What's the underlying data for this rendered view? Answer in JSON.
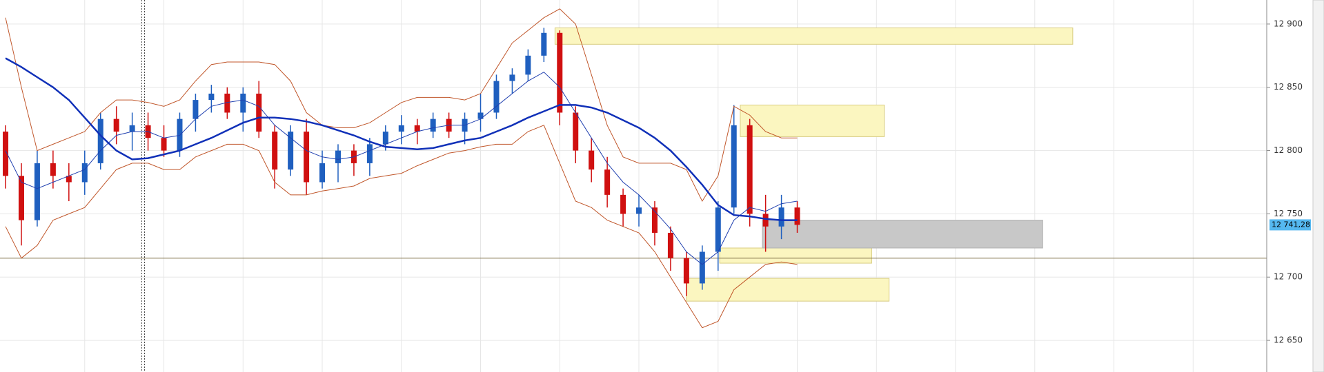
{
  "chart_data": {
    "type": "candlestick",
    "xlim": [
      -0.35,
      79.65
    ],
    "xticks": [
      5,
      10,
      15,
      20,
      25,
      30,
      35,
      40,
      45,
      50,
      55,
      60,
      65,
      70,
      75
    ],
    "ylim": [
      12625,
      12919
    ],
    "yticks": [
      {
        "value": 12650,
        "label": "12 650"
      },
      {
        "value": 12700,
        "label": "12 700"
      },
      {
        "value": 12750,
        "label": "12 750"
      },
      {
        "value": 12800,
        "label": "12 800"
      },
      {
        "value": 12850,
        "label": "12 850"
      },
      {
        "value": 12900,
        "label": "12 900"
      }
    ],
    "grid": true,
    "up_color": "#1f5fbf",
    "down_color": "#d01010",
    "open": [
      12815,
      12780,
      12745,
      12790,
      12780,
      12775,
      12790,
      12825,
      12815,
      12820,
      12810,
      12800,
      12825,
      12840,
      12845,
      12830,
      12845,
      12815,
      12785,
      12815,
      12775,
      12790,
      12800,
      12790,
      12805,
      12815,
      12820,
      12815,
      12825,
      12815,
      12825,
      12830,
      12855,
      12860,
      12875,
      12893,
      12830,
      12800,
      12785,
      12765,
      12750,
      12755,
      12735,
      12715,
      12695,
      12720,
      12755,
      12820,
      12750,
      12740,
      12755
    ],
    "high": [
      12820,
      12790,
      12800,
      12800,
      12790,
      12800,
      12830,
      12835,
      12830,
      12830,
      12820,
      12830,
      12845,
      12852,
      12850,
      12850,
      12855,
      12820,
      12820,
      12825,
      12800,
      12805,
      12805,
      12810,
      12820,
      12828,
      12825,
      12830,
      12830,
      12830,
      12845,
      12860,
      12865,
      12880,
      12897,
      12895,
      12835,
      12810,
      12795,
      12770,
      12765,
      12760,
      12740,
      12720,
      12725,
      12760,
      12836,
      12825,
      12765,
      12765,
      12760
    ],
    "low": [
      12770,
      12725,
      12740,
      12770,
      12760,
      12765,
      12785,
      12805,
      12800,
      12800,
      12795,
      12795,
      12815,
      12830,
      12825,
      12815,
      12810,
      12770,
      12780,
      12765,
      12770,
      12775,
      12780,
      12780,
      12800,
      12805,
      12805,
      12810,
      12810,
      12805,
      12815,
      12825,
      12845,
      12855,
      12870,
      12820,
      12790,
      12775,
      12755,
      12740,
      12740,
      12725,
      12705,
      12685,
      12690,
      12705,
      12750,
      12740,
      12720,
      12730,
      12735
    ],
    "close": [
      12780,
      12745,
      12790,
      12780,
      12775,
      12790,
      12825,
      12815,
      12820,
      12810,
      12800,
      12825,
      12840,
      12845,
      12830,
      12845,
      12815,
      12785,
      12815,
      12775,
      12790,
      12800,
      12790,
      12805,
      12815,
      12820,
      12815,
      12825,
      12815,
      12825,
      12830,
      12855,
      12860,
      12875,
      12893,
      12830,
      12800,
      12785,
      12765,
      12750,
      12755,
      12735,
      12715,
      12695,
      12720,
      12755,
      12820,
      12750,
      12740,
      12755,
      12741.28
    ],
    "overlays": [
      {
        "color": "#c0562a",
        "width": 1,
        "values": [
          12905,
          12850,
          12800,
          12805,
          12810,
          12815,
          12830,
          12840,
          12840,
          12838,
          12835,
          12840,
          12855,
          12868,
          12870,
          12870,
          12870,
          12868,
          12855,
          12830,
          12820,
          12818,
          12818,
          12822,
          12830,
          12838,
          12842,
          12842,
          12842,
          12840,
          12845,
          12865,
          12885,
          12895,
          12905,
          12912,
          12900,
          12860,
          12820,
          12795,
          12790,
          12790,
          12790,
          12785,
          12760,
          12780,
          12835,
          12828,
          12815,
          12810,
          12810
        ]
      },
      {
        "color": "#c0562a",
        "width": 1,
        "values": [
          12740,
          12715,
          12725,
          12745,
          12750,
          12755,
          12770,
          12785,
          12790,
          12790,
          12785,
          12785,
          12795,
          12800,
          12805,
          12805,
          12800,
          12775,
          12765,
          12765,
          12768,
          12770,
          12772,
          12778,
          12780,
          12782,
          12788,
          12793,
          12798,
          12800,
          12803,
          12805,
          12805,
          12815,
          12820,
          12790,
          12760,
          12755,
          12745,
          12740,
          12735,
          12720,
          12700,
          12680,
          12660,
          12665,
          12690,
          12700,
          12710,
          12712,
          12710
        ]
      },
      {
        "color": "#2040b0",
        "width": 1,
        "values": [
          12800,
          12775,
          12770,
          12775,
          12780,
          12785,
          12800,
          12812,
          12815,
          12815,
          12810,
          12812,
          12825,
          12835,
          12838,
          12840,
          12835,
          12820,
          12810,
          12800,
          12795,
          12793,
          12795,
          12800,
          12805,
          12810,
          12815,
          12818,
          12820,
          12820,
          12825,
          12835,
          12845,
          12855,
          12862,
          12850,
          12830,
          12810,
          12790,
          12775,
          12765,
          12752,
          12738,
          12720,
          12710,
          12720,
          12745,
          12755,
          12752,
          12758,
          12760
        ]
      },
      {
        "color": "#1030b8",
        "width": 2.5,
        "values": [
          12873,
          12866,
          12858,
          12850,
          12840,
          12826,
          12812,
          12800,
          12793,
          12794,
          12797,
          12800,
          12805,
          12810,
          12816,
          12822,
          12826,
          12826,
          12825,
          12823,
          12820,
          12816,
          12812,
          12807,
          12803,
          12802,
          12801,
          12802,
          12805,
          12808,
          12810,
          12815,
          12820,
          12826,
          12831,
          12836,
          12836,
          12834,
          12830,
          12824,
          12818,
          12810,
          12800,
          12787,
          12773,
          12757,
          12749,
          12748,
          12746,
          12745,
          12745
        ]
      }
    ],
    "zones": [
      {
        "x": [
          34.7,
          67.4
        ],
        "y": [
          12884,
          12897
        ],
        "color": "#fbf6c0"
      },
      {
        "x": [
          46.4,
          55.5
        ],
        "y": [
          12811,
          12836
        ],
        "color": "#fbf6c0"
      },
      {
        "x": [
          45.1,
          54.7
        ],
        "y": [
          12711,
          12723
        ],
        "color": "#fbf6c0"
      },
      {
        "x": [
          43.0,
          55.8
        ],
        "y": [
          12681,
          12699
        ],
        "color": "#fbf6c0"
      },
      {
        "x": [
          47.8,
          65.5
        ],
        "y": [
          12723,
          12745
        ],
        "color": "#c8c8c8"
      }
    ],
    "hlines": [
      12715
    ],
    "vlines": [
      8.6,
      8.78
    ],
    "last_price": {
      "value": 12741.28,
      "label": "12 741,28"
    }
  }
}
